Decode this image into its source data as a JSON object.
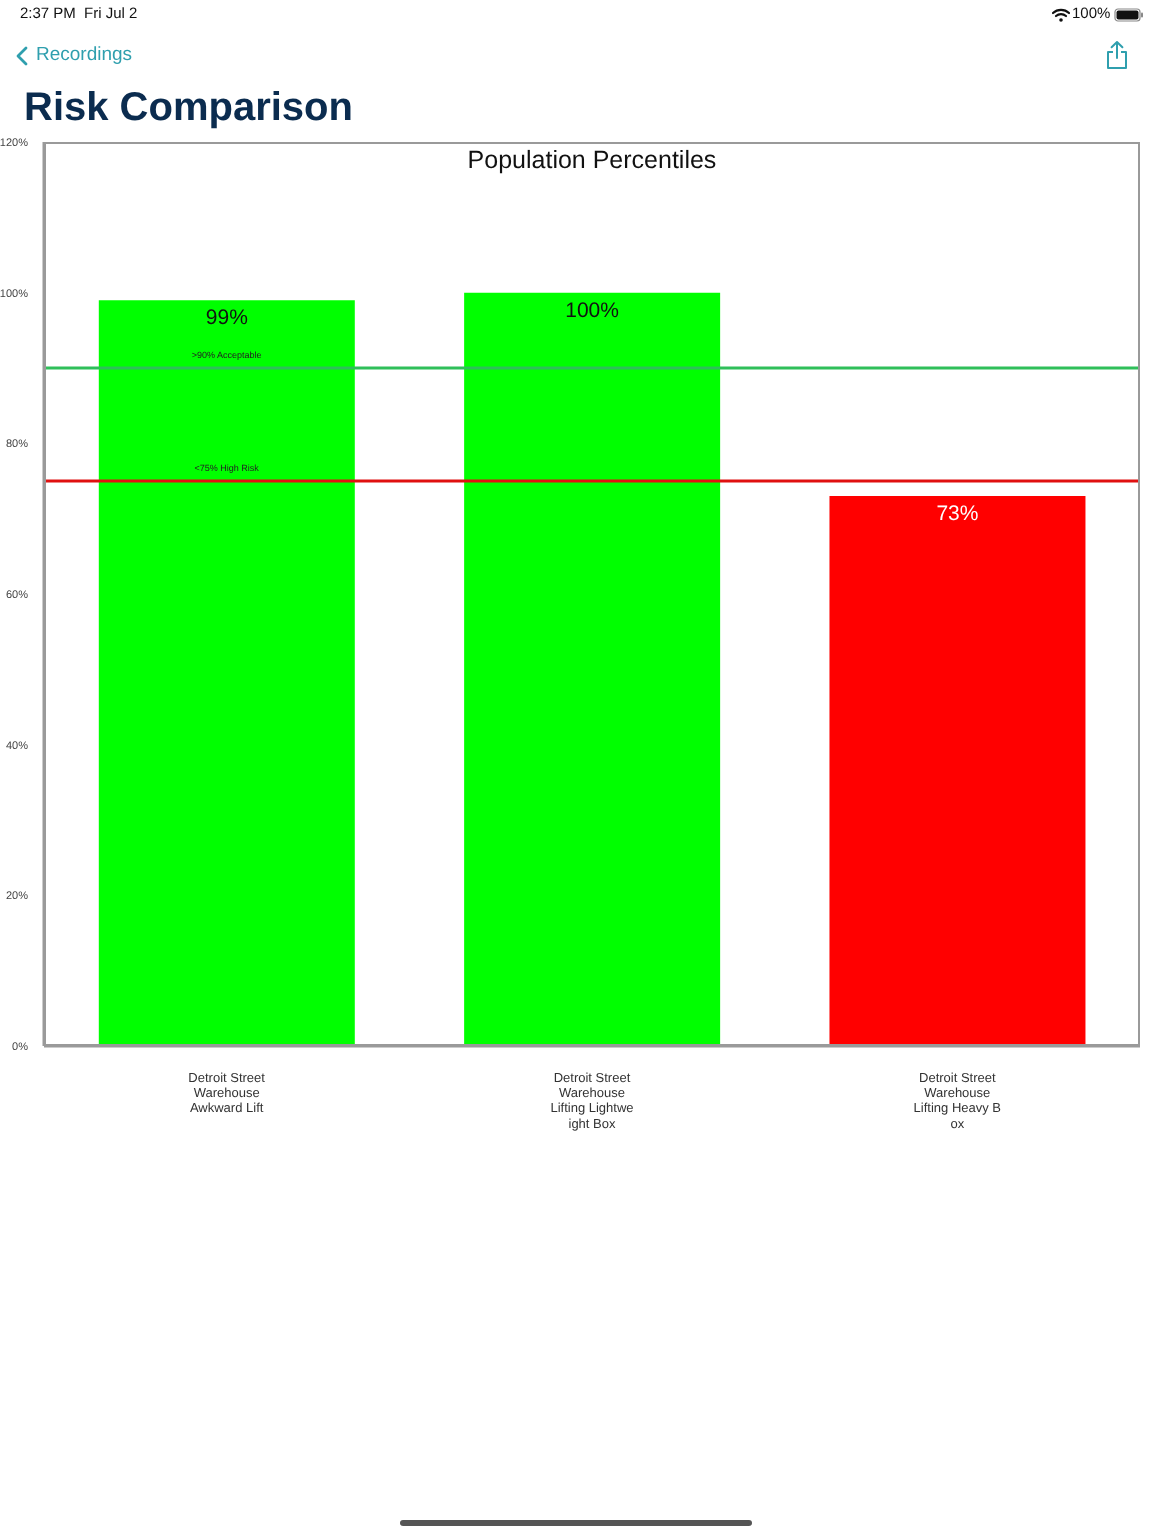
{
  "chart_data": {
    "type": "bar",
    "title": "Risk Comparison",
    "subtitle": "Population Percentiles",
    "categories": [
      "Detroit Street\nWarehouse\nAwkward Lift",
      "Detroit Street\nWarehouse\nLifting Lightweight Box",
      "Detroit Street\nWarehouse\nLifting Heavy Box"
    ],
    "values": [
      99,
      100,
      73
    ],
    "colors": [
      "#00ff00",
      "#00ff00",
      "#ff0000"
    ],
    "value_labels": [
      "99%",
      "100%",
      "73%"
    ],
    "ylim": [
      0,
      120
    ],
    "yticks": [
      {
        "value": 0,
        "label": "0%"
      },
      {
        "value": 20,
        "label": "20%"
      },
      {
        "value": 40,
        "label": "40%"
      },
      {
        "value": 60,
        "label": "60%"
      },
      {
        "value": 80,
        "label": "80%"
      },
      {
        "value": 100,
        "label": "100%"
      },
      {
        "value": 120,
        "label": "120%"
      }
    ],
    "ref_lines": [
      {
        "axis": "y",
        "value": 90,
        "label": ">90% Acceptable",
        "color": "#2fbf5a"
      },
      {
        "axis": "y",
        "value": 75,
        "label": "<75% High Risk",
        "color": "#e01010"
      }
    ],
    "annotations": [
      "2:37 PM",
      "Fri Jul 2",
      "100%",
      "Recordings"
    ]
  }
}
